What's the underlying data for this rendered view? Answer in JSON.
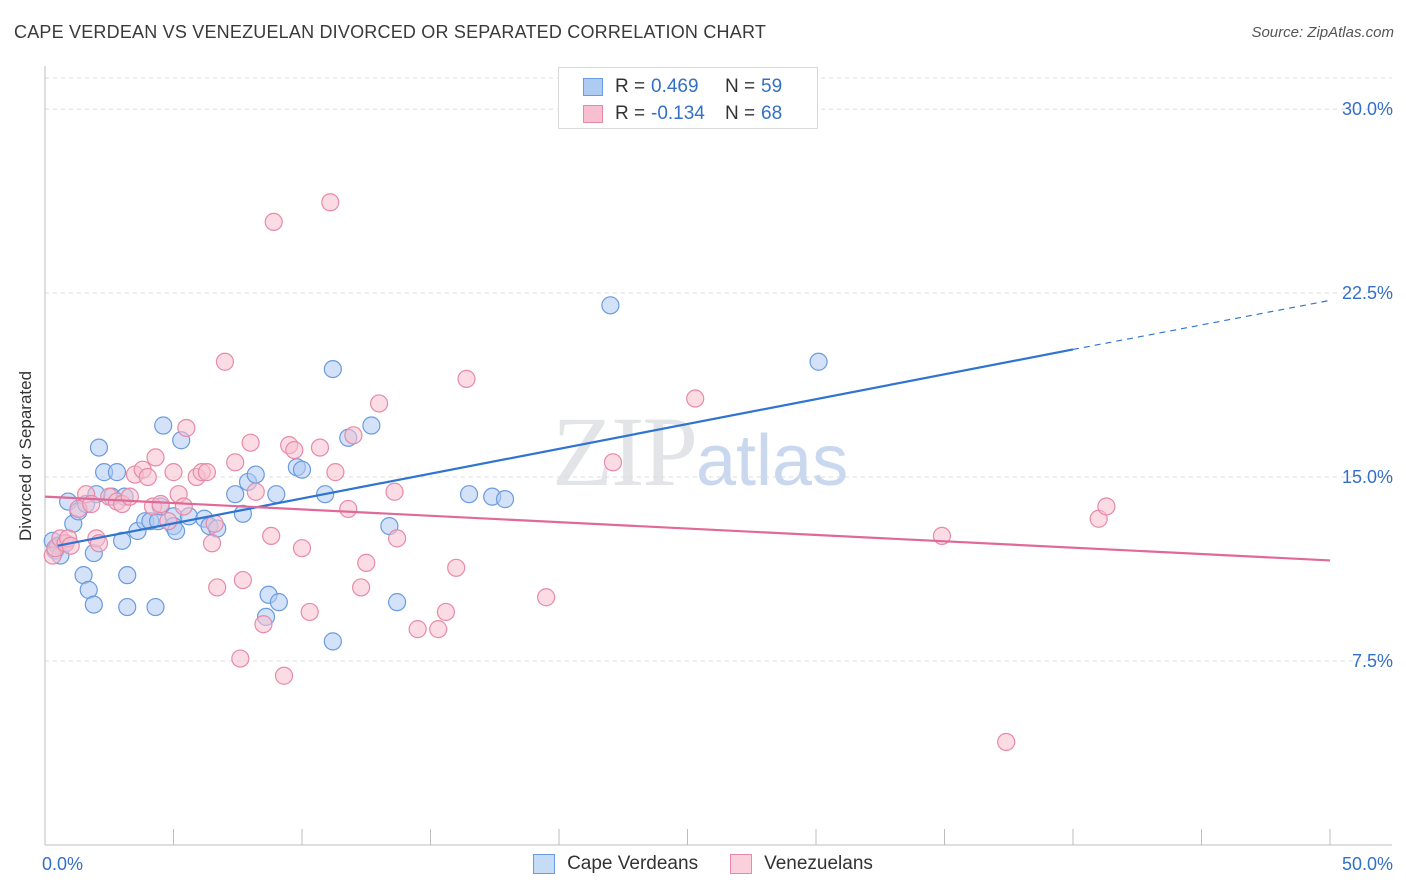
{
  "header": {
    "title": "CAPE VERDEAN VS VENEZUELAN DIVORCED OR SEPARATED CORRELATION CHART",
    "source": "Source: ZipAtlas.com"
  },
  "watermark": {
    "zip": "ZIP",
    "atlas": "atlas"
  },
  "legend_top": [
    {
      "r_label": "R =",
      "r_value": "0.469",
      "n_label": "N =",
      "n_value": "59"
    },
    {
      "r_label": "R =",
      "r_value": "-0.134",
      "n_label": "N =",
      "n_value": "68"
    }
  ],
  "legend_bottom": [
    {
      "label": "Cape Verdeans"
    },
    {
      "label": "Venezuelans"
    }
  ],
  "colors": {
    "blue_fill": "#aecbf2",
    "blue_stroke": "#6a9be0",
    "blue_line": "#2f74d0",
    "pink_fill": "#f7bfd0",
    "pink_stroke": "#e78aa8",
    "pink_line": "#e06a97",
    "tick_label": "#3370c8",
    "grid": "#dcdcdc"
  },
  "chart_data": {
    "type": "scatter",
    "title": "CAPE VERDEAN VS VENEZUELAN DIVORCED OR SEPARATED CORRELATION CHART",
    "xlabel": "",
    "ylabel": "Divorced or Separated",
    "xlim": [
      0,
      50
    ],
    "ylim": [
      0,
      32
    ],
    "x_tick_labels": [
      "0.0%",
      "50.0%"
    ],
    "y_ticks": [
      7.5,
      15.0,
      22.5,
      30.0
    ],
    "y_tick_labels": [
      "7.5%",
      "15.0%",
      "22.5%",
      "30.0%"
    ],
    "grid": "horizontal dashed",
    "series": [
      {
        "name": "Cape Verdeans",
        "color": "#aecbf2",
        "r": 0.469,
        "n": 59,
        "trend": {
          "x0": 0.5,
          "y0": 12.2,
          "x1": 40.0,
          "y1": 20.2,
          "dash_to_x": 50.0,
          "dash_to_y": 22.2
        },
        "points": [
          [
            0.3,
            12.4
          ],
          [
            0.4,
            12.0
          ],
          [
            0.5,
            12.2
          ],
          [
            0.6,
            11.8
          ],
          [
            0.8,
            12.3
          ],
          [
            0.9,
            14.0
          ],
          [
            1.1,
            13.1
          ],
          [
            1.3,
            13.6
          ],
          [
            1.5,
            11.0
          ],
          [
            1.6,
            13.9
          ],
          [
            1.7,
            10.4
          ],
          [
            1.9,
            9.8
          ],
          [
            1.9,
            11.9
          ],
          [
            2.1,
            16.2
          ],
          [
            2.3,
            15.2
          ],
          [
            2.6,
            14.2
          ],
          [
            2.8,
            15.2
          ],
          [
            3.0,
            12.4
          ],
          [
            3.2,
            9.7
          ],
          [
            3.2,
            11.0
          ],
          [
            3.6,
            12.8
          ],
          [
            3.9,
            13.2
          ],
          [
            4.1,
            13.2
          ],
          [
            4.3,
            9.7
          ],
          [
            4.4,
            13.2
          ],
          [
            4.5,
            13.8
          ],
          [
            4.6,
            17.1
          ],
          [
            5.0,
            13.4
          ],
          [
            5.0,
            13.0
          ],
          [
            5.1,
            12.8
          ],
          [
            5.3,
            16.5
          ],
          [
            5.6,
            13.4
          ],
          [
            6.2,
            13.3
          ],
          [
            6.4,
            13.0
          ],
          [
            6.7,
            12.9
          ],
          [
            7.4,
            14.3
          ],
          [
            7.7,
            13.5
          ],
          [
            7.9,
            14.8
          ],
          [
            8.2,
            15.1
          ],
          [
            8.6,
            9.3
          ],
          [
            8.7,
            10.2
          ],
          [
            9.0,
            14.3
          ],
          [
            9.1,
            9.9
          ],
          [
            9.8,
            15.4
          ],
          [
            10.0,
            15.3
          ],
          [
            10.9,
            14.3
          ],
          [
            11.2,
            8.3
          ],
          [
            11.2,
            19.4
          ],
          [
            11.8,
            16.6
          ],
          [
            12.7,
            17.1
          ],
          [
            13.4,
            13.0
          ],
          [
            13.7,
            9.9
          ],
          [
            16.5,
            14.3
          ],
          [
            17.4,
            14.2
          ],
          [
            17.9,
            14.1
          ],
          [
            22.0,
            22.0
          ],
          [
            30.1,
            19.7
          ],
          [
            2.0,
            14.3
          ],
          [
            3.1,
            14.2
          ]
        ]
      },
      {
        "name": "Venezuelans",
        "color": "#f7bfd0",
        "r": -0.134,
        "n": 68,
        "trend": {
          "x0": 0.0,
          "y0": 14.2,
          "x1": 50.0,
          "y1": 11.6
        },
        "points": [
          [
            0.3,
            11.8
          ],
          [
            0.4,
            12.1
          ],
          [
            0.6,
            12.5
          ],
          [
            0.8,
            12.3
          ],
          [
            0.9,
            12.5
          ],
          [
            1.0,
            12.2
          ],
          [
            1.3,
            13.7
          ],
          [
            1.6,
            14.3
          ],
          [
            1.8,
            13.9
          ],
          [
            2.0,
            12.5
          ],
          [
            2.1,
            12.3
          ],
          [
            2.5,
            14.2
          ],
          [
            2.8,
            14.0
          ],
          [
            3.0,
            13.9
          ],
          [
            3.3,
            14.2
          ],
          [
            3.5,
            15.1
          ],
          [
            3.8,
            15.3
          ],
          [
            4.0,
            15.0
          ],
          [
            4.2,
            13.8
          ],
          [
            4.3,
            15.8
          ],
          [
            4.5,
            13.9
          ],
          [
            4.8,
            13.2
          ],
          [
            5.0,
            15.2
          ],
          [
            5.2,
            14.3
          ],
          [
            5.4,
            13.8
          ],
          [
            5.5,
            17.0
          ],
          [
            5.9,
            15.0
          ],
          [
            6.1,
            15.2
          ],
          [
            6.3,
            15.2
          ],
          [
            6.5,
            12.3
          ],
          [
            6.6,
            13.1
          ],
          [
            6.7,
            10.5
          ],
          [
            7.0,
            19.7
          ],
          [
            7.4,
            15.6
          ],
          [
            7.6,
            7.6
          ],
          [
            7.7,
            10.8
          ],
          [
            8.0,
            16.4
          ],
          [
            8.2,
            14.4
          ],
          [
            8.5,
            9.0
          ],
          [
            8.8,
            12.6
          ],
          [
            8.9,
            25.4
          ],
          [
            9.3,
            6.9
          ],
          [
            9.5,
            16.3
          ],
          [
            9.7,
            16.1
          ],
          [
            10.0,
            12.1
          ],
          [
            10.3,
            9.5
          ],
          [
            10.7,
            16.2
          ],
          [
            11.1,
            26.2
          ],
          [
            11.3,
            15.2
          ],
          [
            11.8,
            13.7
          ],
          [
            12.0,
            16.7
          ],
          [
            12.3,
            10.5
          ],
          [
            12.5,
            11.5
          ],
          [
            13.0,
            18.0
          ],
          [
            13.6,
            14.4
          ],
          [
            13.7,
            12.5
          ],
          [
            14.5,
            8.8
          ],
          [
            15.3,
            8.8
          ],
          [
            15.6,
            9.5
          ],
          [
            16.0,
            11.3
          ],
          [
            16.4,
            19.0
          ],
          [
            19.5,
            10.1
          ],
          [
            22.1,
            15.6
          ],
          [
            25.3,
            18.2
          ],
          [
            34.9,
            12.6
          ],
          [
            37.4,
            4.2
          ],
          [
            41.0,
            13.3
          ],
          [
            41.3,
            13.8
          ]
        ]
      }
    ]
  }
}
